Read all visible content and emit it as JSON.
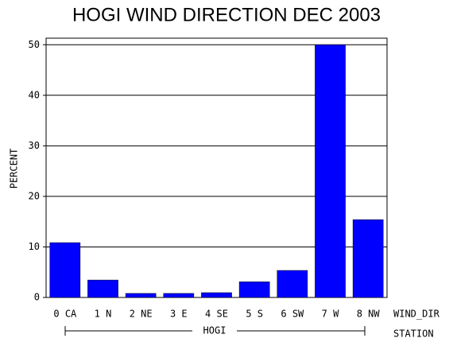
{
  "chart_data": {
    "type": "bar",
    "title": "HOGI WIND DIRECTION DEC 2003",
    "y_label": "PERCENT",
    "x_label": "WIND_DIR",
    "group_label": "HOGI",
    "group_axis_label": "STATION",
    "categories": [
      "0 CA",
      "1 N",
      "2 NE",
      "3 E",
      "4 SE",
      "5 S",
      "6 SW",
      "7 W",
      "8 NW"
    ],
    "values": [
      10.85,
      3.45,
      0.8,
      0.8,
      0.95,
      3.1,
      5.35,
      50,
      15.4
    ],
    "color": "#0000ff",
    "ylim": [
      0,
      51.3
    ],
    "yticks": [
      0,
      10,
      20,
      30,
      40,
      50
    ],
    "grid": true
  }
}
